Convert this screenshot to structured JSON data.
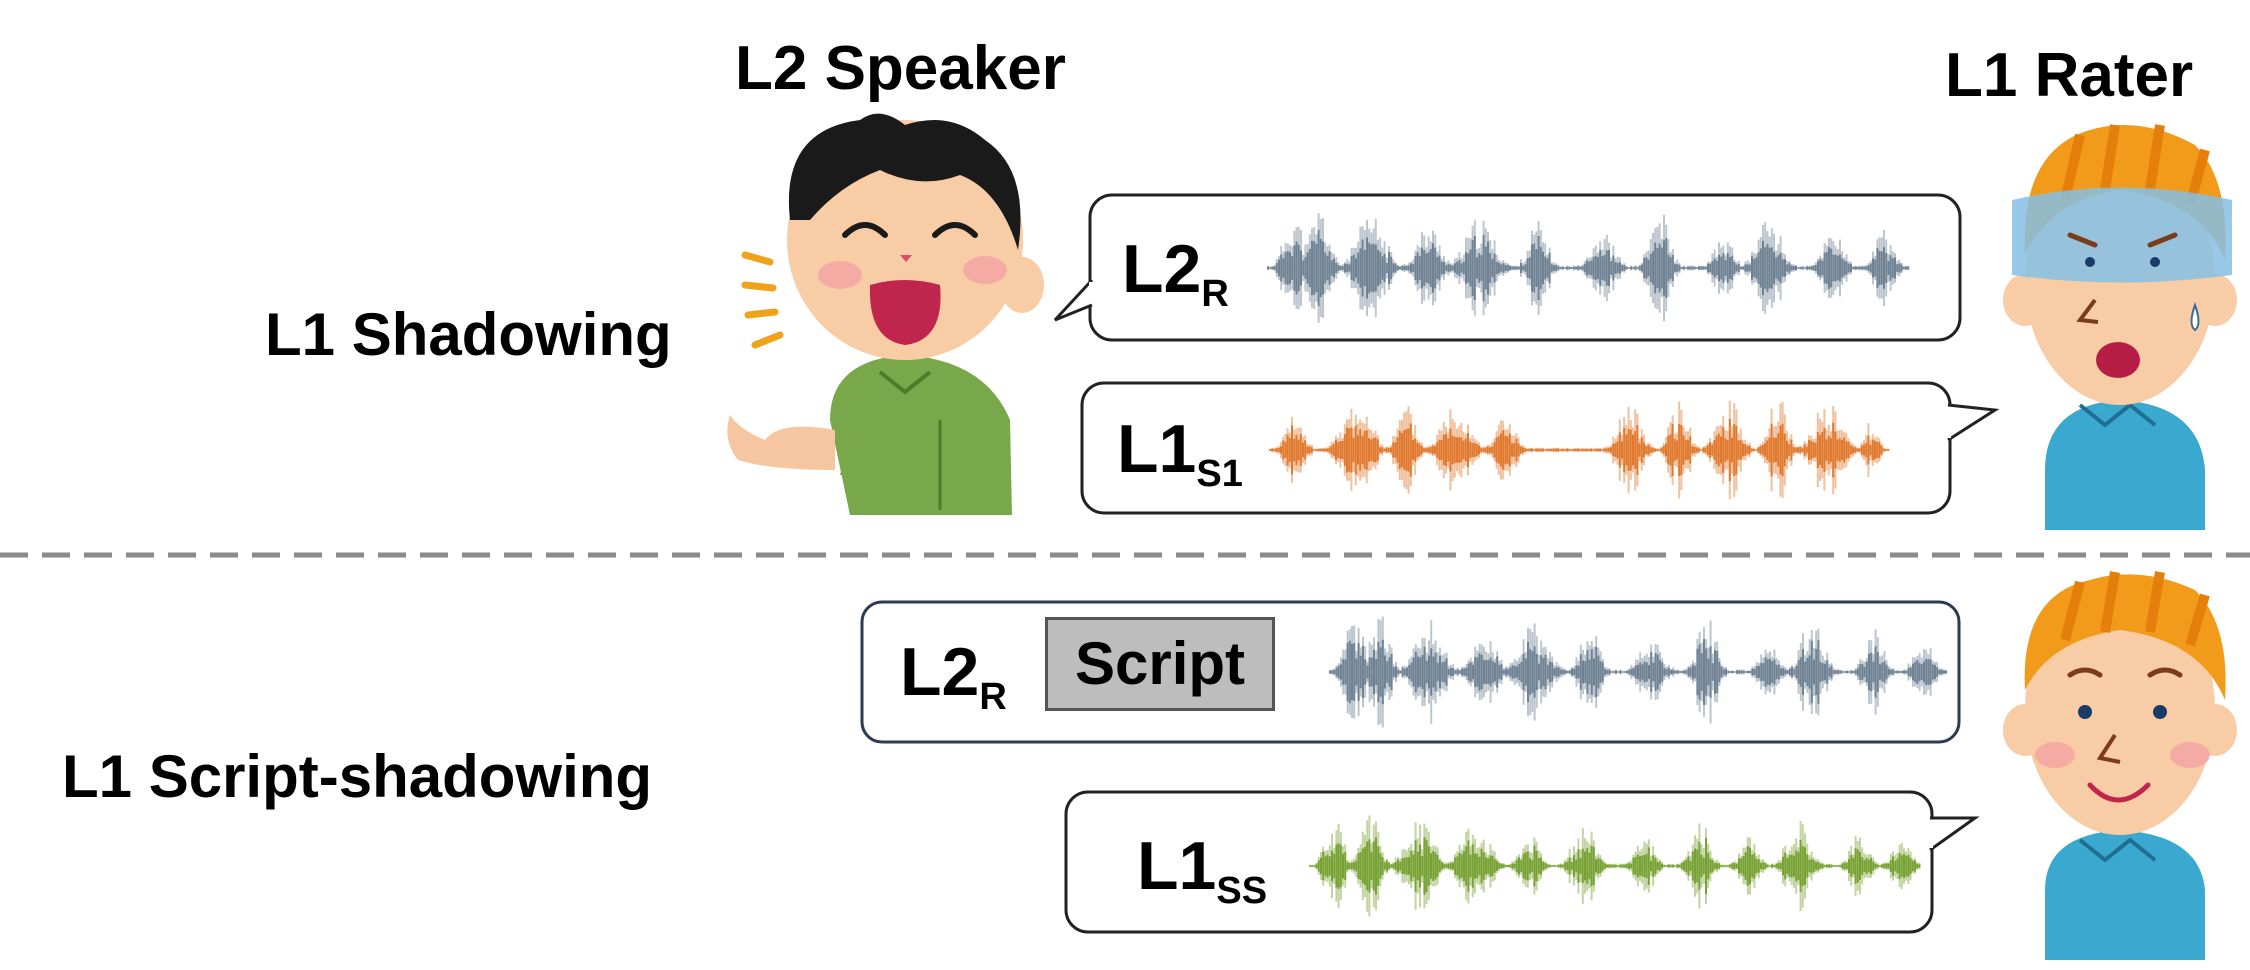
{
  "labels": {
    "l2_speaker": "L2 Speaker",
    "l1_rater": "L1 Rater",
    "l1_shadowing": "L1 Shadowing",
    "l1_script_shadowing": "L1 Script-shadowing",
    "script": "Script"
  },
  "waveforms": [
    {
      "main": "L2",
      "sub": "R"
    },
    {
      "main": "L1",
      "sub": "S1"
    },
    {
      "main": "L2",
      "sub": "R"
    },
    {
      "main": "L1",
      "sub": "SS"
    }
  ],
  "colors": {
    "l2_wave": "#6f8294",
    "l1_shadow_wave": "#e0782d",
    "l1_script_wave": "#77a233",
    "divider": "#8a8a8a"
  },
  "icons": [
    "speaker-person-icon",
    "rater-blindfolded-icon",
    "rater-smiling-icon",
    "speech-lines-icon"
  ]
}
